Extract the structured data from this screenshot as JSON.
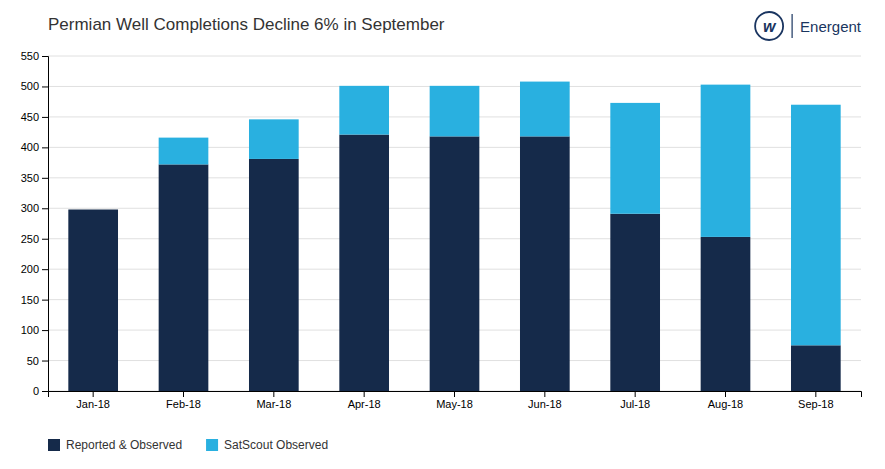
{
  "chart_data": {
    "type": "bar",
    "title": "Permian Well Completions Decline 6% in September",
    "categories": [
      "Jan-18",
      "Feb-18",
      "Mar-18",
      "Apr-18",
      "May-18",
      "Jun-18",
      "Jul-18",
      "Aug-18",
      "Sep-18"
    ],
    "series": [
      {
        "name": "Reported & Observed",
        "color": "#152a4a",
        "values": [
          298,
          372,
          381,
          421,
          418,
          418,
          291,
          253,
          75
        ]
      },
      {
        "name": "SatScout Observed",
        "color": "#29b0e0",
        "values": [
          0,
          44,
          65,
          80,
          83,
          90,
          182,
          250,
          395
        ]
      }
    ],
    "stacked": true,
    "ylim": [
      0,
      550
    ],
    "yticks": [
      0,
      50,
      100,
      150,
      200,
      250,
      300,
      350,
      400,
      450,
      500,
      550
    ],
    "grid": true,
    "legend": "lower left",
    "annotations": [
      {
        "text": "w",
        "color": "#1a3560"
      },
      {
        "text": "Energent",
        "color": "#1a3560"
      }
    ]
  }
}
